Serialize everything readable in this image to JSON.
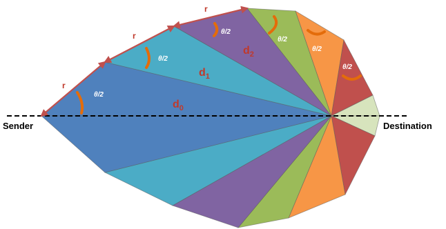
{
  "labels": {
    "sender": "Sender",
    "destination": "Destination",
    "hop_radius": "r",
    "half_angle": "θ/2",
    "distance_prefix": "d",
    "distance_subscripts": [
      "0",
      "1",
      "2"
    ]
  },
  "colors": {
    "blue": "#4f81bd",
    "teal": "#4bacc6",
    "purple": "#8064a2",
    "green": "#9bbb59",
    "orange": "#f79646",
    "red": "#c0504d",
    "pale_green": "#d7e4bd",
    "arrow": "#c0504d",
    "arc": "#e46c0a",
    "text_red": "#c0392b"
  }
}
